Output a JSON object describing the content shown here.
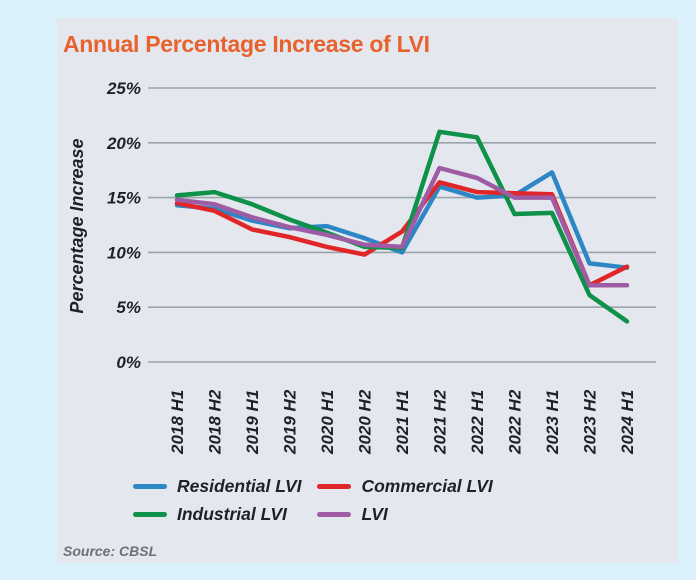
{
  "panel": {
    "title": "Annual Percentage Increase of LVI",
    "title_color": "#e8622d",
    "source": "Source: CBSL"
  },
  "colors": {
    "outer_background": "#dbf1fb",
    "panel_background": "#e4e8ee",
    "gridline": "#9ba3ad",
    "axis_text": "#1d222a",
    "source_text": "#6a7179"
  },
  "chart_data": {
    "type": "line",
    "title": "Annual Percentage Increase of LVI",
    "xlabel": "",
    "ylabel": "Percentage Increase",
    "categories": [
      "2018 H1",
      "2018 H2",
      "2019 H1",
      "2019 H2",
      "2020 H1",
      "2020 H2",
      "2021 H1",
      "2021 H2",
      "2022 H1",
      "2022 H2",
      "2023 H1",
      "2023 H2",
      "2024 H1"
    ],
    "series": [
      {
        "name": "Residential LVI",
        "color": "#2d87c5",
        "values": [
          14.3,
          14.0,
          12.9,
          12.2,
          12.4,
          11.3,
          10.0,
          16.0,
          15.0,
          15.2,
          17.3,
          9.0,
          8.6
        ]
      },
      {
        "name": "Commercial LVI",
        "color": "#e12629",
        "values": [
          14.5,
          13.8,
          12.1,
          11.4,
          10.5,
          9.8,
          11.9,
          16.4,
          15.5,
          15.4,
          15.3,
          7.0,
          8.7
        ]
      },
      {
        "name": "Industrial LVI",
        "color": "#0e9148",
        "values": [
          15.2,
          15.5,
          14.4,
          13.0,
          11.8,
          10.5,
          10.4,
          21.0,
          20.5,
          13.5,
          13.6,
          6.1,
          3.7
        ]
      },
      {
        "name": "LVI",
        "color": "#9f5ba3",
        "values": [
          14.8,
          14.4,
          13.2,
          12.3,
          11.6,
          10.7,
          10.5,
          17.7,
          16.8,
          15.0,
          15.0,
          7.0,
          7.0
        ]
      }
    ],
    "ylim": [
      0,
      25
    ],
    "yticks": [
      0,
      5,
      10,
      15,
      20,
      25
    ],
    "ytick_suffix": "%",
    "grid": true,
    "legend_position": "bottom",
    "source": "Source: CBSL"
  }
}
